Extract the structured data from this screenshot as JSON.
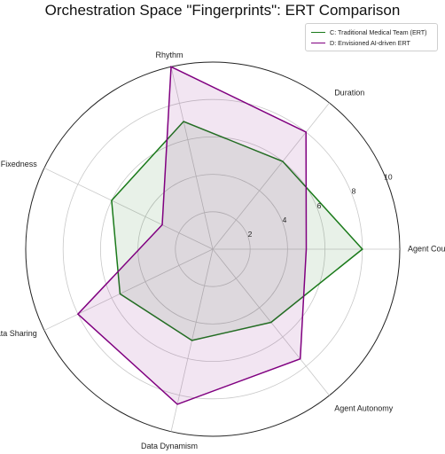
{
  "chart_data": {
    "type": "radar",
    "title": "Orchestration Space \"Fingerprints\": ERT Comparison",
    "axes": [
      "Agent Count",
      "Duration",
      "Rhythm",
      "Role Fixedness",
      "Data Sharing",
      "Data Dynamism",
      "Agent Autonomy"
    ],
    "rlim": [
      0,
      10
    ],
    "rticks": [
      2,
      4,
      6,
      8,
      10
    ],
    "grid": true,
    "legend_position": "top-right",
    "series": [
      {
        "name": "C: Traditional Medical Team (ERT)",
        "values": [
          8,
          6,
          7,
          6,
          5.5,
          5,
          5
        ],
        "color": "#1a7a1a",
        "fill": "#1a7a1a"
      },
      {
        "name": "D: Envisioned AI-driven ERT",
        "values": [
          5,
          8,
          10,
          3,
          8,
          8.5,
          7.5
        ],
        "color": "#800080",
        "fill": "#800080"
      }
    ]
  }
}
